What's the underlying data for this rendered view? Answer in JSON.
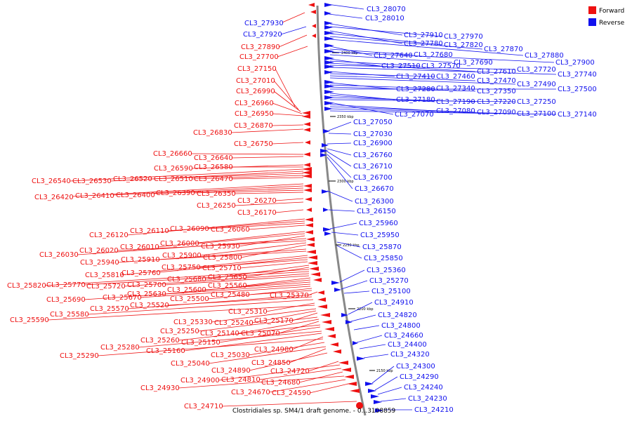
{
  "legend": {
    "forward": {
      "label": "Forward",
      "color": "#ee1111"
    },
    "reverse": {
      "label": "Reverse",
      "color": "#1111ee"
    }
  },
  "footer": "Clostridiales sp. SM4/1 draft genome. - 0...3108859",
  "axis_ticks": [
    "2400 kbp",
    "2350 kbp",
    "2300 kbp",
    "2250 kbp",
    "2200 kbp",
    "2150 kbp"
  ],
  "forward_labels": [
    "CL3_27930",
    "CL3_27920",
    "CL3_27890",
    "CL3_27700",
    "CL3_27150",
    "CL3_27010",
    "CL3_26990",
    "CL3_26960",
    "CL3_26950",
    "CL3_26870",
    "CL3_26830",
    "CL3_26750",
    "CL3_26660",
    "CL3_26640",
    "CL3_26590",
    "CL3_26580",
    "CL3_26540",
    "CL3_26530",
    "CL3_26520",
    "CL3_26510",
    "CL3_26470",
    "CL3_26420",
    "CL3_26410",
    "CL3_26400",
    "CL3_26390",
    "CL3_26350",
    "CL3_26270",
    "CL3_26250",
    "CL3_26170",
    "CL3_26120",
    "CL3_26110",
    "CL3_26090",
    "CL3_26060",
    "CL3_26000",
    "CL3_26010",
    "CL3_25930",
    "CL3_26030",
    "CL3_26020",
    "CL3_25900",
    "CL3_25800",
    "CL3_25940",
    "CL3_25910",
    "CL3_25810",
    "CL3_25760",
    "CL3_25750",
    "CL3_25710",
    "CL3_25680",
    "CL3_25650",
    "CL3_25820",
    "CL3_25770",
    "CL3_25720",
    "CL3_25700",
    "CL3_25560",
    "CL3_25630",
    "CL3_25600",
    "CL3_25690",
    "CL3_25670",
    "CL3_25500",
    "CL3_25480",
    "CL3_25370",
    "CL3_25570",
    "CL3_25520",
    "CL3_25580",
    "CL3_25310",
    "CL3_25590",
    "CL3_25330",
    "CL3_25240",
    "CL3_25170",
    "CL3_25250",
    "CL3_25140",
    "CL3_25070",
    "CL3_25260",
    "CL3_25150",
    "CL3_25280",
    "CL3_25160",
    "CL3_24980",
    "CL3_25290",
    "CL3_25030",
    "CL3_25040",
    "CL3_24850",
    "CL3_24890",
    "CL3_24720",
    "CL3_24900",
    "CL3_24810",
    "CL3_24680",
    "CL3_24930",
    "CL3_24670",
    "CL3_24590",
    "CL3_24710"
  ],
  "reverse_labels": [
    "CL3_28070",
    "CL3_28010",
    "CL3_27910",
    "CL3_27970",
    "CL3_27780",
    "CL3_27820",
    "CL3_27870",
    "CL3_27880",
    "CL3_27640",
    "CL3_27680",
    "CL3_27900",
    "CL3_27690",
    "CL3_27510",
    "CL3_27570",
    "CL3_27610",
    "CL3_27720",
    "CL3_27740",
    "CL3_27410",
    "CL3_27460",
    "CL3_27470",
    "CL3_27490",
    "CL3_27280",
    "CL3_27340",
    "CL3_27350",
    "CL3_27500",
    "CL3_27180",
    "CL3_27190",
    "CL3_27220",
    "CL3_27250",
    "CL3_27070",
    "CL3_27080",
    "CL3_27090",
    "CL3_27100",
    "CL3_27140",
    "CL3_27050",
    "CL3_27030",
    "CL3_26900",
    "CL3_26760",
    "CL3_26710",
    "CL3_26700",
    "CL3_26670",
    "CL3_26300",
    "CL3_26150",
    "CL3_25960",
    "CL3_25950",
    "CL3_25870",
    "CL3_25850",
    "CL3_25360",
    "CL3_25270",
    "CL3_25100",
    "CL3_24910",
    "CL3_24820",
    "CL3_24800",
    "CL3_24660",
    "CL3_24400",
    "CL3_24320",
    "CL3_24300",
    "CL3_24290",
    "CL3_24240",
    "CL3_24230",
    "CL3_24210"
  ]
}
